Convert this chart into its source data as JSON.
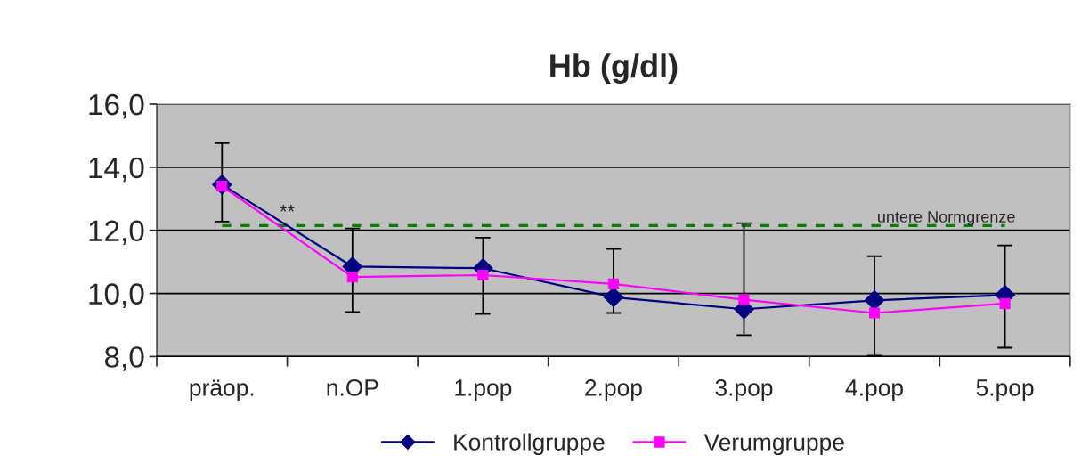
{
  "chart_data": {
    "type": "line",
    "title": "Hb (g/dl)",
    "categories": [
      "präop.",
      "n.OP",
      "1.pop",
      "2.pop",
      "3.pop",
      "4.pop",
      "5.pop"
    ],
    "series": [
      {
        "name": "Kontrollgruppe",
        "color": "#000080",
        "marker": "diamond",
        "values": [
          13.45,
          10.85,
          10.8,
          9.88,
          9.5,
          9.78,
          9.95
        ],
        "errors": [
          [
            12.28,
            14.76
          ],
          [
            9.41,
            12.06
          ],
          [
            9.35,
            11.77
          ],
          [
            9.38,
            11.41
          ],
          [
            8.68,
            12.23
          ],
          [
            8.03,
            11.18
          ],
          [
            8.28,
            11.52
          ]
        ]
      },
      {
        "name": "Verumgruppe",
        "color": "#ff00ff",
        "marker": "square",
        "values": [
          13.4,
          10.52,
          10.58,
          10.3,
          9.8,
          9.38,
          9.68
        ]
      }
    ],
    "ylim": [
      8,
      16
    ],
    "yticks": [
      {
        "value": 8,
        "label": "8,0"
      },
      {
        "value": 10,
        "label": "10,0"
      },
      {
        "value": 12,
        "label": "12,0"
      },
      {
        "value": 14,
        "label": "14,0"
      },
      {
        "value": 16,
        "label": "16,0"
      }
    ],
    "ref_lines": [
      {
        "axis": "y",
        "value": 12.15,
        "label": "untere Normgrenze",
        "color": "#008000",
        "line_style": "dashed"
      }
    ],
    "annotations": [
      "**"
    ],
    "grid": "y",
    "legend": "bottom",
    "line_style": "solid"
  }
}
